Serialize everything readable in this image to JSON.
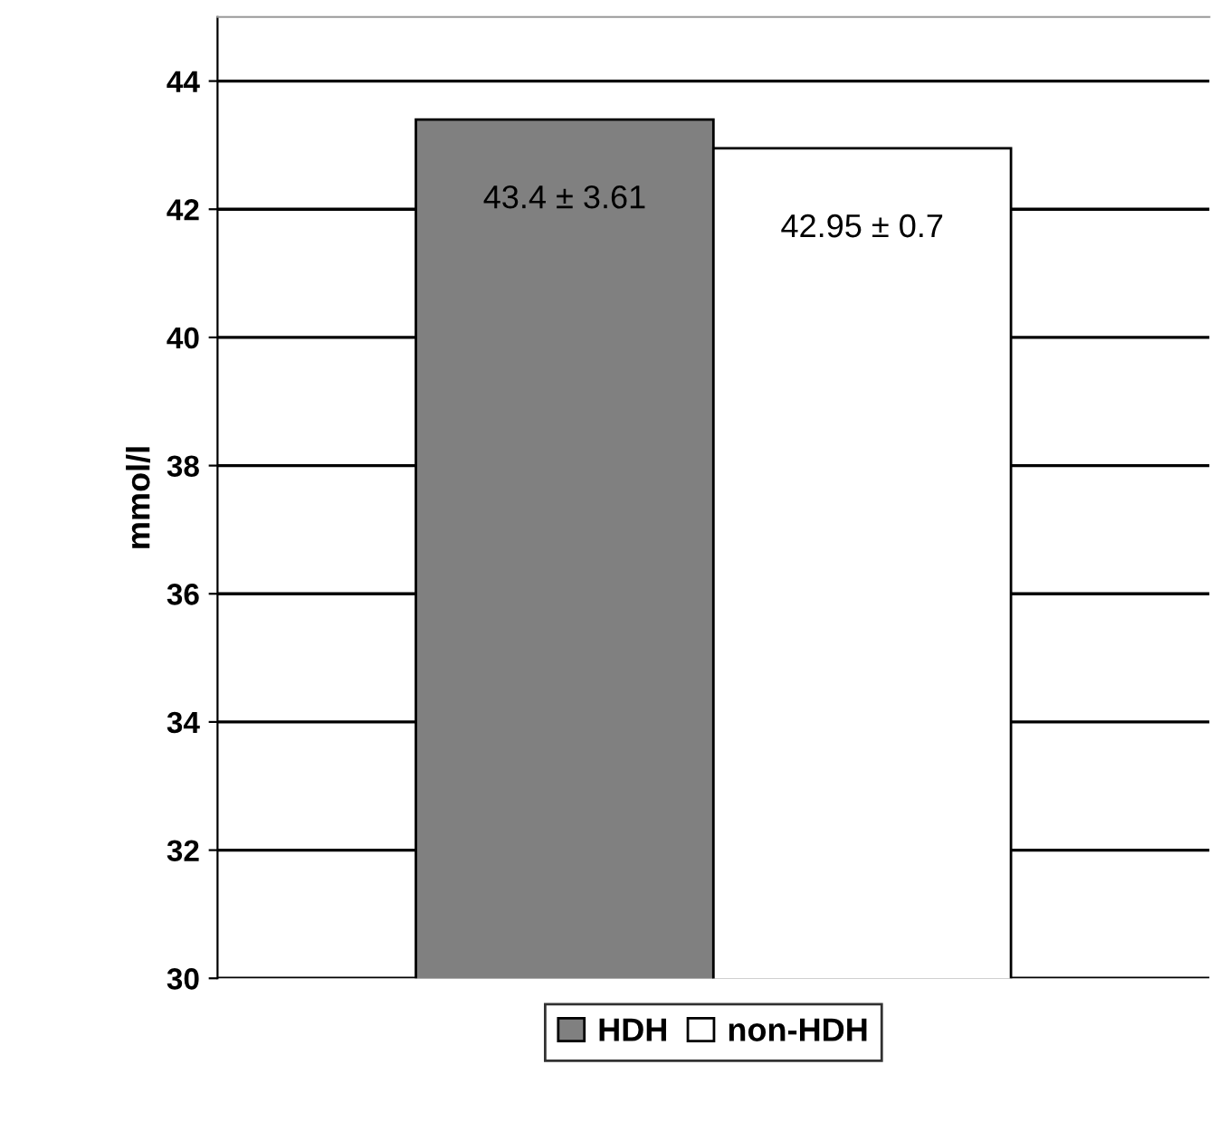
{
  "chart_data": {
    "type": "bar",
    "ylabel": "mmol/l",
    "categories": [
      null
    ],
    "series": [
      {
        "name": "HDH",
        "color": "#808080",
        "values": [
          43.4
        ],
        "value_labels": [
          "43.4 ± 3.61"
        ]
      },
      {
        "name": "non-HDH",
        "color": "#ffffff",
        "values": [
          42.95
        ],
        "value_labels": [
          "42.95 ± 0.7"
        ]
      }
    ],
    "ylim": [
      30,
      45
    ],
    "yticks": [
      30,
      32,
      34,
      36,
      38,
      40,
      42,
      44
    ],
    "grid": "y",
    "legend": "bottom"
  }
}
